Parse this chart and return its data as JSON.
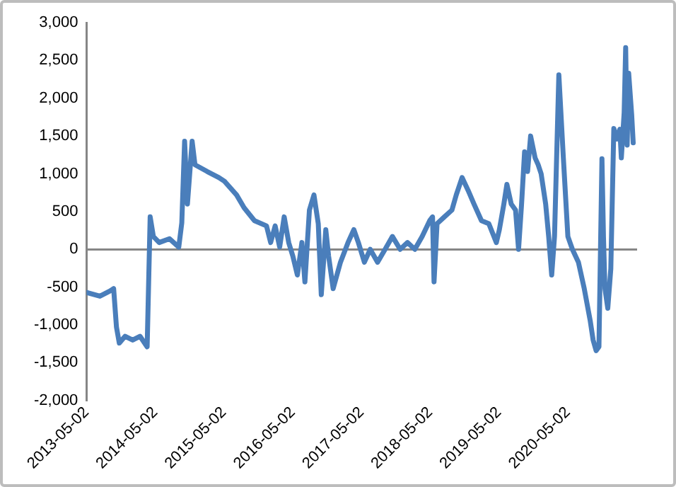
{
  "chart_data": {
    "type": "line",
    "x": [
      "2013-05-02",
      "2013-07-12",
      "2013-09-05",
      "2013-09-23",
      "2013-10-08",
      "2013-10-23",
      "2013-11-23",
      "2014-01-02",
      "2014-02-10",
      "2014-03-20",
      "2014-04-05",
      "2014-04-22",
      "2014-05-23",
      "2014-07-17",
      "2014-09-04",
      "2014-09-20",
      "2014-10-05",
      "2014-10-20",
      "2014-11-14",
      "2014-11-29",
      "2015-02-02",
      "2015-04-05",
      "2015-05-05",
      "2015-07-08",
      "2015-08-17",
      "2015-10-11",
      "2015-12-14",
      "2016-01-05",
      "2016-01-29",
      "2016-02-22",
      "2016-03-17",
      "2016-04-10",
      "2016-05-02",
      "2016-05-26",
      "2016-06-19",
      "2016-07-05",
      "2016-07-29",
      "2016-08-22",
      "2016-09-14",
      "2016-09-30",
      "2016-10-24",
      "2016-11-08",
      "2016-12-02",
      "2017-01-10",
      "2017-02-19",
      "2017-03-22",
      "2017-04-15",
      "2017-05-17",
      "2017-06-17",
      "2017-07-26",
      "2017-09-04",
      "2017-10-13",
      "2017-11-23",
      "2018-01-01",
      "2018-02-09",
      "2018-03-20",
      "2018-04-29",
      "2018-05-14",
      "2018-05-22",
      "2018-06-07",
      "2018-07-16",
      "2018-08-25",
      "2018-09-17",
      "2018-10-18",
      "2018-11-19",
      "2018-12-20",
      "2019-01-29",
      "2019-03-09",
      "2019-04-18",
      "2019-05-04",
      "2019-05-28",
      "2019-06-13",
      "2019-07-06",
      "2019-07-29",
      "2019-08-14",
      "2019-08-30",
      "2019-09-15",
      "2019-10-01",
      "2019-10-17",
      "2019-11-10",
      "2019-11-26",
      "2019-12-12",
      "2020-01-05",
      "2020-01-21",
      "2020-02-06",
      "2020-02-21",
      "2020-03-15",
      "2020-04-08",
      "2020-05-02",
      "2020-05-26",
      "2020-06-27",
      "2020-07-28",
      "2020-08-29",
      "2020-09-13",
      "2020-09-29",
      "2020-10-14",
      "2020-10-30",
      "2020-11-07",
      "2020-11-15",
      "2020-11-30",
      "2020-12-16",
      "2021-01-01",
      "2021-01-17",
      "2021-02-02",
      "2021-02-10",
      "2021-02-25",
      "2021-03-05",
      "2021-03-13",
      "2021-03-21",
      "2021-04-06",
      "2021-04-14"
    ],
    "series": [
      {
        "color": "#4a7ebb",
        "values": [
          -570,
          -620,
          -550,
          -520,
          -1030,
          -1240,
          -1150,
          -1200,
          -1150,
          -1290,
          430,
          170,
          90,
          140,
          30,
          350,
          1430,
          600,
          1430,
          1120,
          1030,
          950,
          900,
          720,
          550,
          380,
          310,
          90,
          310,
          30,
          430,
          90,
          -90,
          -340,
          90,
          -430,
          520,
          720,
          340,
          -600,
          260,
          -90,
          -520,
          -170,
          90,
          260,
          90,
          -170,
          0,
          -170,
          0,
          170,
          0,
          90,
          0,
          170,
          380,
          430,
          -430,
          340,
          430,
          520,
          720,
          950,
          780,
          600,
          380,
          340,
          90,
          260,
          600,
          860,
          600,
          520,
          0,
          600,
          1290,
          1030,
          1500,
          1210,
          1120,
          1000,
          600,
          170,
          -340,
          170,
          2310,
          1210,
          170,
          0,
          -170,
          -520,
          -950,
          -1200,
          -1340,
          -1290,
          1200,
          170,
          -520,
          -780,
          -260,
          1600,
          1460,
          1590,
          1210,
          1810,
          2670,
          1380,
          2330,
          1780,
          1410
        ]
      }
    ],
    "xlim": [
      "2013-05-02",
      "2021-05-01"
    ],
    "xticks": [
      "2013-05-02",
      "2014-05-02",
      "2015-05-02",
      "2016-05-02",
      "2017-05-02",
      "2018-05-02",
      "2019-05-02",
      "2020-05-02"
    ],
    "ylim": [
      -2000,
      3000
    ],
    "yticks": [
      {
        "value": -2000,
        "label": "-2,000"
      },
      {
        "value": -1500,
        "label": "-1,500"
      },
      {
        "value": -1000,
        "label": "-1,000"
      },
      {
        "value": -500,
        "label": "-500"
      },
      0,
      500,
      {
        "value": 1000,
        "label": "1,000"
      },
      {
        "value": 1500,
        "label": "1,500"
      },
      {
        "value": 2000,
        "label": "2,000"
      },
      {
        "value": 2500,
        "label": "2,500"
      },
      {
        "value": 3000,
        "label": "3,000"
      }
    ],
    "legend": false,
    "marker": "none",
    "line_style": "solid"
  }
}
